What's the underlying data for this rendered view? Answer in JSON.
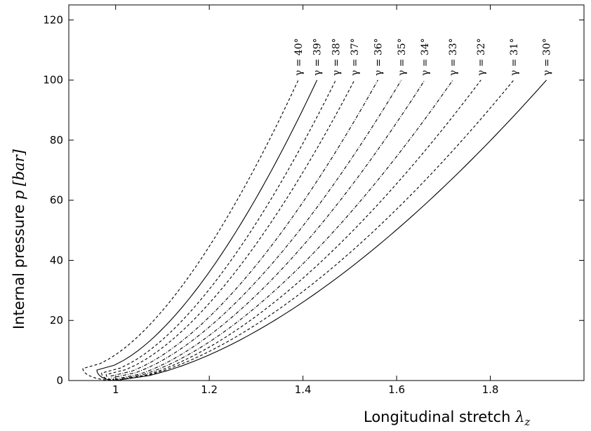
{
  "chart_data": {
    "type": "line",
    "title": "",
    "xlabel": "Longitudinal stretch λz",
    "xlabel_parts": {
      "text": "Longitudinal stretch ",
      "symbol": "λ",
      "subscript": "z"
    },
    "ylabel": "Internal pressure p [bar]",
    "ylabel_parts": {
      "text": "Internal pressure ",
      "symbol": "p",
      "unit": "[bar]"
    },
    "xlim": [
      0.9,
      2.0
    ],
    "ylim": [
      0,
      125
    ],
    "xticks": [
      1,
      1.2,
      1.4,
      1.6,
      1.8
    ],
    "xtick_labels": [
      "1",
      "1.2",
      "1.4",
      "1.6",
      "1.8"
    ],
    "yticks": [
      0,
      20,
      40,
      60,
      80,
      100,
      120
    ],
    "ytick_labels": [
      "0",
      "20",
      "40",
      "60",
      "80",
      "100",
      "120"
    ],
    "grid": false,
    "legend": "none",
    "series": [
      {
        "name": "γ = 40°",
        "style": "dashed",
        "lambda_min": 0.93,
        "p_at_min": 4.0,
        "end_x": 1.39,
        "end_y": 100
      },
      {
        "name": "γ = 39°",
        "style": "solid",
        "lambda_min": 0.96,
        "p_at_min": 3.5,
        "end_x": 1.43,
        "end_y": 100
      },
      {
        "name": "γ = 38°",
        "style": "dashed",
        "lambda_min": 0.97,
        "p_at_min": 2.5,
        "end_x": 1.47,
        "end_y": 100
      },
      {
        "name": "γ = 37°",
        "style": "dashed",
        "lambda_min": 0.98,
        "p_at_min": 2.0,
        "end_x": 1.51,
        "end_y": 100
      },
      {
        "name": "γ = 36°",
        "style": "dashdot",
        "lambda_min": 0.99,
        "p_at_min": 1.5,
        "end_x": 1.56,
        "end_y": 100
      },
      {
        "name": "γ = 35°",
        "style": "dashdot",
        "lambda_min": 0.995,
        "p_at_min": 1.0,
        "end_x": 1.61,
        "end_y": 100
      },
      {
        "name": "γ = 34°",
        "style": "dashdot",
        "lambda_min": 1.0,
        "p_at_min": 0.5,
        "end_x": 1.66,
        "end_y": 100
      },
      {
        "name": "γ = 33°",
        "style": "dashdot",
        "lambda_min": 1.0,
        "p_at_min": 0.2,
        "end_x": 1.72,
        "end_y": 100
      },
      {
        "name": "γ = 32°",
        "style": "dashed",
        "lambda_min": 1.0,
        "p_at_min": 0.0,
        "end_x": 1.78,
        "end_y": 100
      },
      {
        "name": "γ = 31°",
        "style": "dashed",
        "lambda_min": 1.0,
        "p_at_min": 0.0,
        "end_x": 1.85,
        "end_y": 100
      },
      {
        "name": "γ = 30°",
        "style": "solid",
        "lambda_min": 1.0,
        "p_at_min": 0.0,
        "end_x": 1.92,
        "end_y": 100
      }
    ],
    "colors": {
      "line": "#000000",
      "axis": "#000000",
      "background": "#ffffff"
    }
  }
}
